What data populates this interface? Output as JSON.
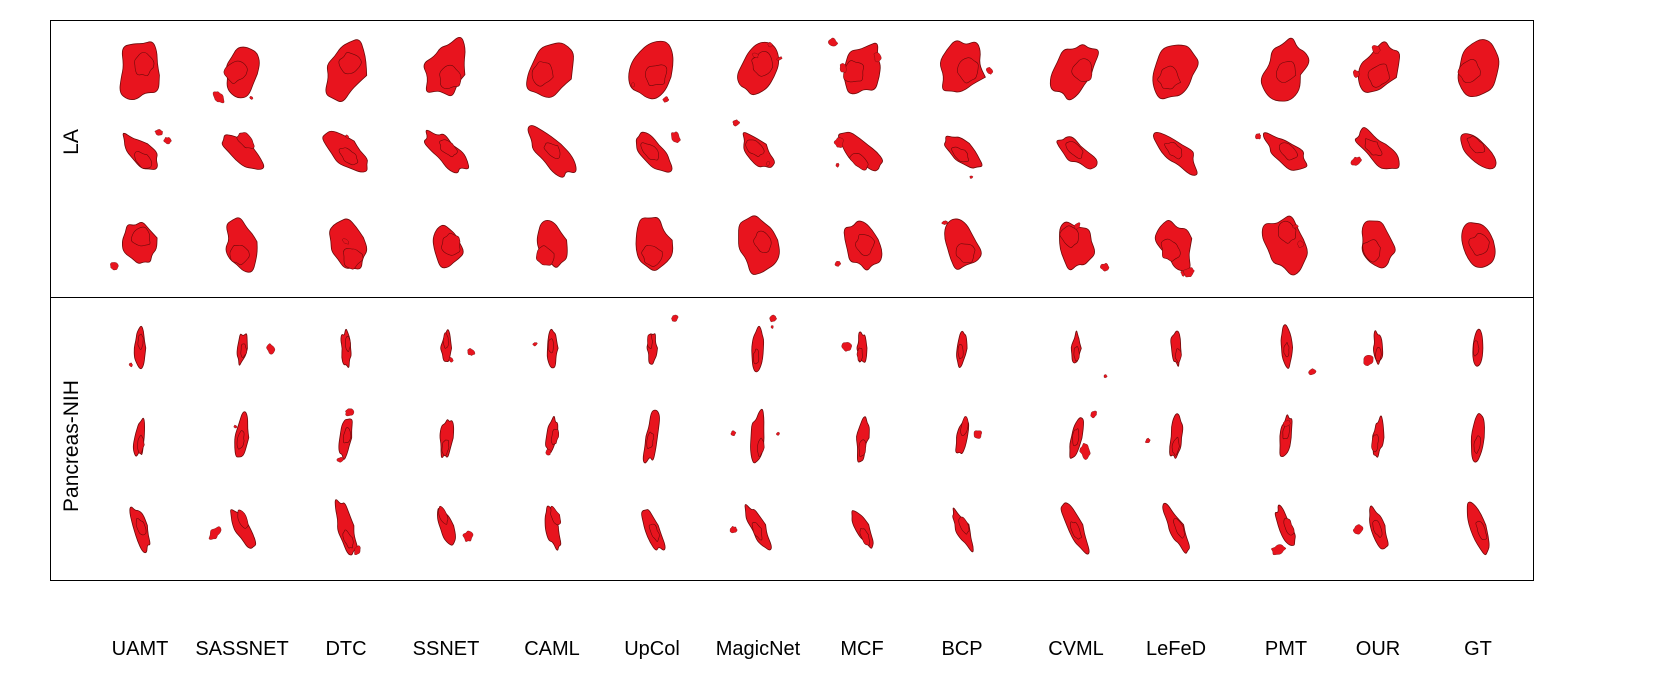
{
  "figure": {
    "methods": [
      "UAMT",
      "SASSNET",
      "DTC",
      "SSNET",
      "CAML",
      "UpCol",
      "MagicNet",
      "MCF",
      "BCP",
      "CVML",
      "LeFeD",
      "PMT",
      "OUR",
      "GT"
    ],
    "datasets": [
      {
        "name": "LA",
        "views": 3
      },
      {
        "name": "Pancreas-NIH",
        "views": 3
      }
    ],
    "colors": {
      "segmentation": "#e8141e",
      "edge": "#6b0a0a",
      "frame": "#000000"
    }
  }
}
